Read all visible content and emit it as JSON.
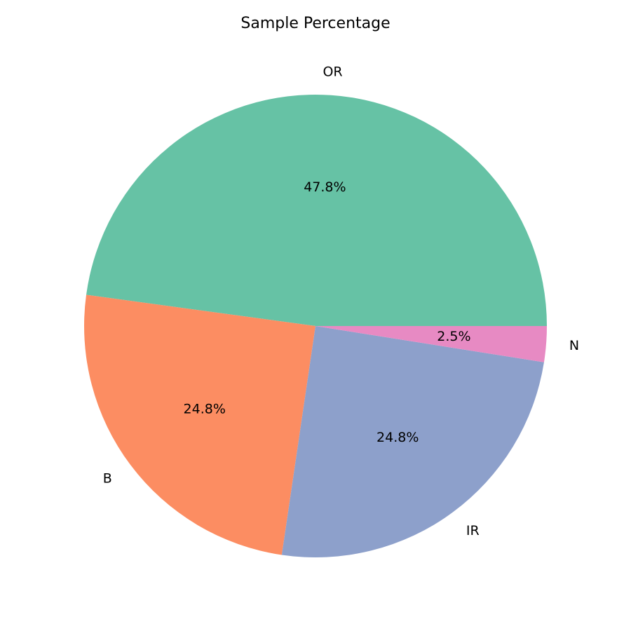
{
  "chart_data": {
    "type": "pie",
    "title": "Sample Percentage",
    "start_angle_deg": 0,
    "direction": "counterclockwise",
    "slices": [
      {
        "label": "OR",
        "percent": 47.8,
        "value_label": "47.8%",
        "color": "#66c2a5"
      },
      {
        "label": "B",
        "percent": 24.8,
        "value_label": "24.8%",
        "color": "#fc8d62"
      },
      {
        "label": "IR",
        "percent": 24.8,
        "value_label": "24.8%",
        "color": "#8da0cb"
      },
      {
        "label": "N",
        "percent": 2.5,
        "value_label": "2.5%",
        "color": "#e78ac3"
      }
    ]
  }
}
